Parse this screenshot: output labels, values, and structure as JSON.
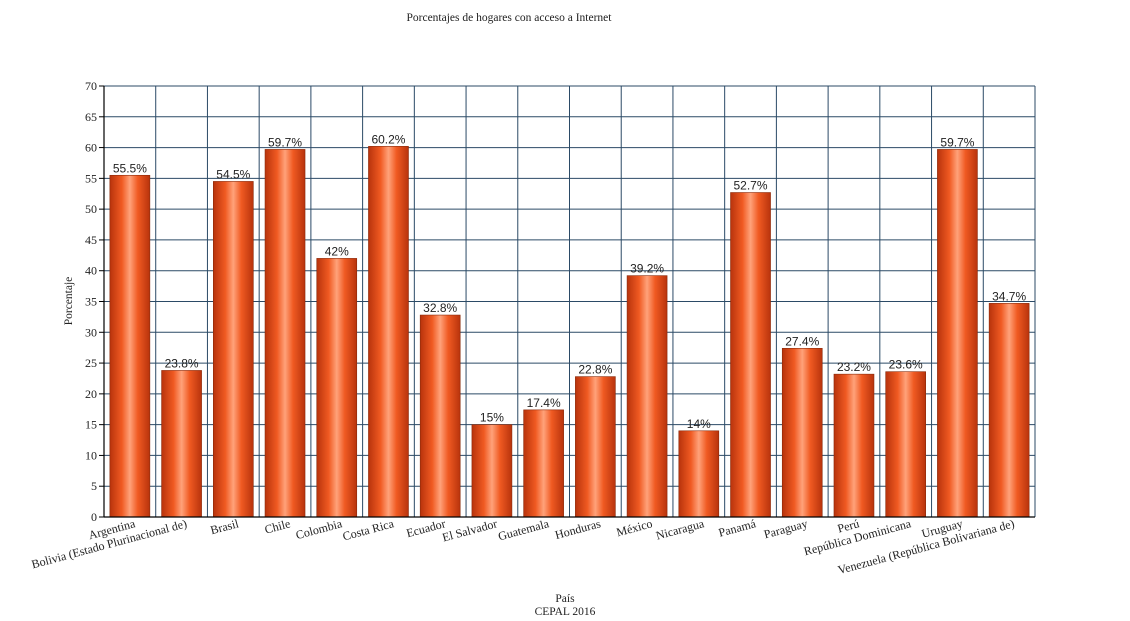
{
  "chart_data": {
    "type": "bar",
    "title": "Porcentajes de hogares con acceso a Internet",
    "xlabel": "País",
    "source": "CEPAL 2016",
    "ylabel": "Porcentaje",
    "ylim": [
      0,
      70
    ],
    "yticks": [
      0,
      5,
      10,
      15,
      20,
      25,
      30,
      35,
      40,
      45,
      50,
      55,
      60,
      65,
      70
    ],
    "grid": true,
    "categories": [
      "Argentina",
      "Bolivia (Estado Plurinacional de)",
      "Brasil",
      "Chile",
      "Colombia",
      "Costa Rica",
      "Ecuador",
      "El Salvador",
      "Guatemala",
      "Honduras",
      "México",
      "Nicaragua",
      "Panamá",
      "Paraguay",
      "Perú",
      "República Dominicana",
      "Uruguay",
      "Venezuela (República Bolivariana de)"
    ],
    "values": [
      55.5,
      23.8,
      54.5,
      59.7,
      42,
      60.2,
      32.8,
      15,
      17.4,
      22.8,
      39.2,
      14,
      52.7,
      27.4,
      23.2,
      23.6,
      59.7,
      34.7
    ],
    "value_labels": [
      "55.5%",
      "23.8%",
      "54.5%",
      "59.7%",
      "42%",
      "60.2%",
      "32.8%",
      "15%",
      "17.4%",
      "22.8%",
      "39.2%",
      "14%",
      "52.7%",
      "27.4%",
      "23.2%",
      "23.6%",
      "59.7%",
      "34.7%"
    ],
    "colors": {
      "bar_center": "#ffa27a",
      "bar_mid": "#f05a22",
      "bar_edge": "#b8330c",
      "bar_stroke": "#8a2a0a",
      "grid": "#2b4a66",
      "axis": "#000000"
    }
  }
}
